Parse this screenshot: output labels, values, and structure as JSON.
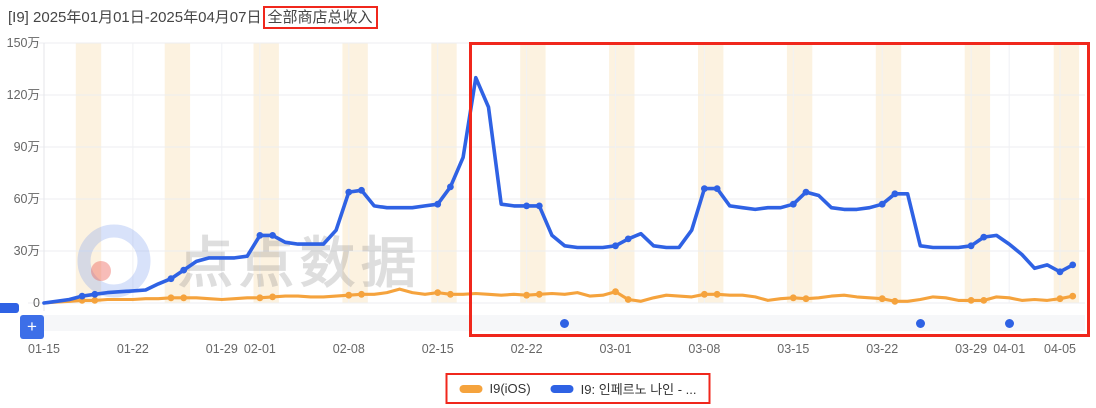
{
  "header": {
    "title_prefix": "[I9] 2025年01月01日-2025年04月07日",
    "title_highlight": "全部商店总收入"
  },
  "toolbar": {
    "zoom_button_label": "+"
  },
  "watermark": {
    "text": "点点数据"
  },
  "legend": {
    "items": [
      {
        "label": "I9(iOS)",
        "color": "#F5A33D"
      },
      {
        "label": "I9: 인페르노 나인 - ...",
        "color": "#2F62E4"
      }
    ]
  },
  "annotations": {
    "color": "#F0271C",
    "boxes": [
      "title-highlight",
      "chart-region",
      "legend"
    ]
  },
  "chart_data": {
    "type": "line",
    "title": "[I9] 2025年01月01日-2025年04月07日全部商店总收入",
    "unit": "万 (10,000 CNY)",
    "start_date": "2025-01-15",
    "x_ticks": [
      "01-15",
      "01-22",
      "01-29",
      "02-01",
      "02-08",
      "02-15",
      "02-22",
      "03-01",
      "03-08",
      "03-15",
      "03-22",
      "03-29",
      "04-01",
      "04-05"
    ],
    "y_ticks": [
      "150万",
      "120万",
      "90万",
      "60万",
      "30万",
      "0"
    ],
    "ylim_wan": [
      0,
      150
    ],
    "grid": true,
    "weekend_shading": true,
    "weekend_point_markers": true,
    "legend_position": "bottom",
    "event_marker_dates": [
      "02-25",
      "03-25",
      "04-01"
    ],
    "series": [
      {
        "name": "I9(iOS)",
        "color": "#F5A33D",
        "values_wan": [
          0,
          0.5,
          1,
          1.5,
          1.5,
          2,
          2,
          2,
          2.5,
          2.5,
          3,
          3,
          3,
          2.5,
          2,
          2.5,
          3,
          3,
          3.5,
          4,
          4,
          3.5,
          3.5,
          4,
          4.5,
          5,
          5,
          6,
          8,
          6,
          5,
          6,
          5,
          5,
          5.5,
          5,
          4.5,
          5,
          4.5,
          5,
          5.5,
          5,
          6,
          4,
          4.5,
          6.5,
          2,
          1,
          3,
          4.5,
          4,
          3.5,
          5,
          5,
          4.5,
          4.5,
          3.5,
          1.5,
          2.5,
          3,
          2.5,
          3,
          4,
          4.5,
          3.5,
          3,
          2.5,
          1,
          1,
          2,
          3.5,
          3,
          1.5,
          1.5,
          1.5,
          3.5,
          3,
          1.5,
          2,
          1.5,
          2.5,
          4
        ]
      },
      {
        "name": "I9: 인페르노 나인 - ...",
        "color": "#2F62E4",
        "values_wan": [
          0,
          1,
          2,
          4,
          5,
          6,
          6.5,
          7,
          7.5,
          11,
          14,
          19,
          24,
          26,
          26,
          26,
          27,
          39,
          39,
          35,
          34,
          34,
          34,
          42,
          64,
          65,
          56,
          55,
          55,
          55,
          56,
          57,
          67,
          84,
          130,
          113,
          57,
          56,
          56,
          56,
          39,
          33,
          32,
          32,
          32,
          33,
          37,
          40,
          33,
          32,
          32,
          42,
          66,
          66,
          56,
          55,
          54,
          55,
          55,
          57,
          64,
          62,
          55,
          54,
          54,
          55,
          57,
          63,
          63,
          33,
          32,
          32,
          32,
          33,
          38,
          39,
          34,
          28,
          20,
          22,
          18,
          22
        ]
      }
    ]
  }
}
